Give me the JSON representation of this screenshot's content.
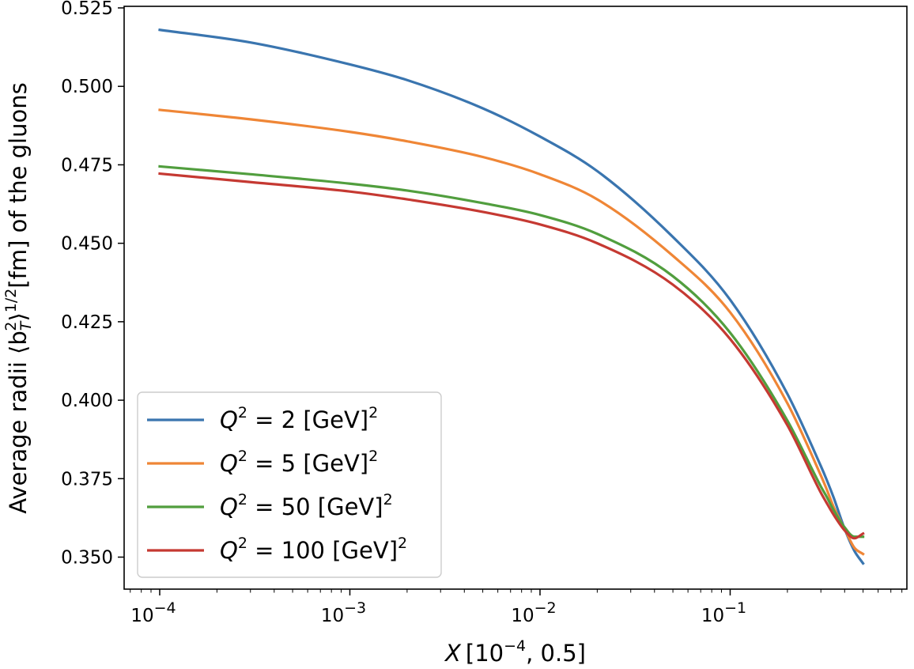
{
  "chart_data": {
    "type": "line",
    "xscale": "log",
    "xlim": [
      6.5e-05,
      0.85
    ],
    "ylim": [
      0.3398,
      0.5255
    ],
    "xlabel": {
      "main": "X",
      "range": "[10",
      "exp": "−4",
      "tail": ", 0.5]"
    },
    "ylabel": {
      "pre": "Average radii ⟨b",
      "sub": "T",
      "sup2": "2",
      "mid": "⟩",
      "sup": "1/2",
      "post": "[fm] of the gluons"
    },
    "yticks": [
      0.35,
      0.375,
      0.4,
      0.425,
      0.45,
      0.475,
      0.5,
      0.525
    ],
    "ytick_labels": [
      "0.350",
      "0.375",
      "0.400",
      "0.425",
      "0.450",
      "0.475",
      "0.500",
      "0.525"
    ],
    "xticks": [
      {
        "value": 0.0001,
        "base": "10",
        "exp": "−4"
      },
      {
        "value": 0.001,
        "base": "10",
        "exp": "−3"
      },
      {
        "value": 0.01,
        "base": "10",
        "exp": "−2"
      },
      {
        "value": 0.1,
        "base": "10",
        "exp": "−1"
      }
    ],
    "legend_position": "lower-left",
    "series": [
      {
        "name": "Q2=2",
        "label": {
          "q": "Q",
          "sq": "2",
          "eq": " = 2 [GeV]",
          "sq2": "2"
        },
        "color": "#3a75af",
        "x": [
          0.0001,
          0.0003,
          0.001,
          0.002,
          0.005,
          0.01,
          0.02,
          0.05,
          0.1,
          0.2,
          0.3,
          0.32,
          0.35,
          0.4,
          0.45,
          0.5
        ],
        "y": [
          0.518,
          0.514,
          0.507,
          0.502,
          0.493,
          0.484,
          0.473,
          0.452,
          0.432,
          0.402,
          0.379,
          0.375,
          0.369,
          0.359,
          0.352,
          0.348
        ]
      },
      {
        "name": "Q2=5",
        "label": {
          "q": "Q",
          "sq": "2",
          "eq": " = 5 [GeV]",
          "sq2": "2"
        },
        "color": "#ef8636",
        "x": [
          0.0001,
          0.0003,
          0.001,
          0.002,
          0.005,
          0.01,
          0.02,
          0.05,
          0.1,
          0.2,
          0.3,
          0.32,
          0.35,
          0.4,
          0.45,
          0.5
        ],
        "y": [
          0.4925,
          0.4895,
          0.4855,
          0.4825,
          0.4775,
          0.472,
          0.464,
          0.446,
          0.428,
          0.399,
          0.376,
          0.372,
          0.366,
          0.359,
          0.353,
          0.351
        ]
      },
      {
        "name": "Q2=50",
        "label": {
          "q": "Q",
          "sq": "2",
          "eq": " = 50 [GeV]",
          "sq2": "2"
        },
        "color": "#519e3e",
        "x": [
          0.0001,
          0.0003,
          0.001,
          0.002,
          0.005,
          0.01,
          0.02,
          0.05,
          0.1,
          0.2,
          0.3,
          0.32,
          0.35,
          0.4,
          0.45,
          0.5
        ],
        "y": [
          0.4745,
          0.472,
          0.469,
          0.4668,
          0.4628,
          0.459,
          0.453,
          0.4395,
          0.4215,
          0.3935,
          0.3725,
          0.3695,
          0.365,
          0.3595,
          0.3565,
          0.3565
        ]
      },
      {
        "name": "Q2=100",
        "label": {
          "q": "Q",
          "sq": "2",
          "eq": " = 100 [GeV]",
          "sq2": "2"
        },
        "color": "#c53932",
        "x": [
          0.0001,
          0.0003,
          0.001,
          0.002,
          0.005,
          0.01,
          0.02,
          0.05,
          0.1,
          0.2,
          0.3,
          0.32,
          0.35,
          0.4,
          0.45,
          0.5
        ],
        "y": [
          0.4722,
          0.4695,
          0.4665,
          0.464,
          0.46,
          0.456,
          0.45,
          0.4368,
          0.4195,
          0.392,
          0.3705,
          0.3675,
          0.3635,
          0.3585,
          0.356,
          0.3575
        ]
      }
    ]
  }
}
